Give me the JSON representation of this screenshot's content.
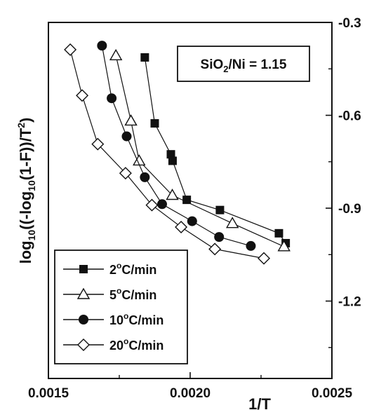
{
  "chart_data": {
    "type": "scatter",
    "title": "",
    "xlabel": "1/T",
    "ylabel_parts": {
      "a": "log",
      "b": "10",
      "c": "((-log",
      "d": "10",
      "e": "(1-F))/T",
      "f": "2",
      "g": ")"
    },
    "xlim": [
      0.0015,
      0.0025
    ],
    "ylim": [
      -1.45,
      -0.3
    ],
    "x_ticks": [
      "0.0015",
      "0.0020",
      "0.0025"
    ],
    "y_ticks": [
      "-0.3",
      "-0.6",
      "-0.9",
      "-1.2"
    ],
    "y_axis_side": "right",
    "grid": false,
    "legend_position": "bottom-left",
    "annotation": {
      "pre": "SiO",
      "sub": "2",
      "post": "/Ni = 1.15"
    },
    "series": [
      {
        "name": "2°C/min",
        "label_parts": {
          "num": "2",
          "deg": "o",
          "unit": "C/min"
        },
        "marker": "square-filled",
        "points": [
          [
            0.00184,
            -0.413
          ],
          [
            0.001875,
            -0.626
          ],
          [
            0.001932,
            -0.726
          ],
          [
            0.001938,
            -0.747
          ],
          [
            0.001988,
            -0.873
          ],
          [
            0.002105,
            -0.906
          ],
          [
            0.002313,
            -0.981
          ],
          [
            0.002337,
            -1.013
          ]
        ]
      },
      {
        "name": "5°C/min",
        "label_parts": {
          "num": "5",
          "deg": "o",
          "unit": "C/min"
        },
        "marker": "triangle-open",
        "points": [
          [
            0.001738,
            -0.407
          ],
          [
            0.001791,
            -0.618
          ],
          [
            0.00182,
            -0.747
          ],
          [
            0.001937,
            -0.858
          ],
          [
            0.002149,
            -0.949
          ],
          [
            0.002331,
            -1.024
          ]
        ]
      },
      {
        "name": "10°C/min",
        "label_parts": {
          "num": "10",
          "deg": "o",
          "unit": "C/min"
        },
        "marker": "circle-filled",
        "points": [
          [
            0.001689,
            -0.375
          ],
          [
            0.001723,
            -0.545
          ],
          [
            0.001776,
            -0.668
          ],
          [
            0.00184,
            -0.8
          ],
          [
            0.001901,
            -0.887
          ],
          [
            0.002007,
            -0.942
          ],
          [
            0.002102,
            -0.993
          ],
          [
            0.002214,
            -1.022
          ]
        ]
      },
      {
        "name": "20°C/min",
        "label_parts": {
          "num": "20",
          "deg": "o",
          "unit": "C/min"
        },
        "marker": "diamond-open",
        "points": [
          [
            0.001577,
            -0.388
          ],
          [
            0.001619,
            -0.536
          ],
          [
            0.001674,
            -0.693
          ],
          [
            0.001772,
            -0.787
          ],
          [
            0.001865,
            -0.89
          ],
          [
            0.001968,
            -0.961
          ],
          [
            0.002087,
            -1.032
          ],
          [
            0.00226,
            -1.062
          ]
        ]
      }
    ]
  }
}
